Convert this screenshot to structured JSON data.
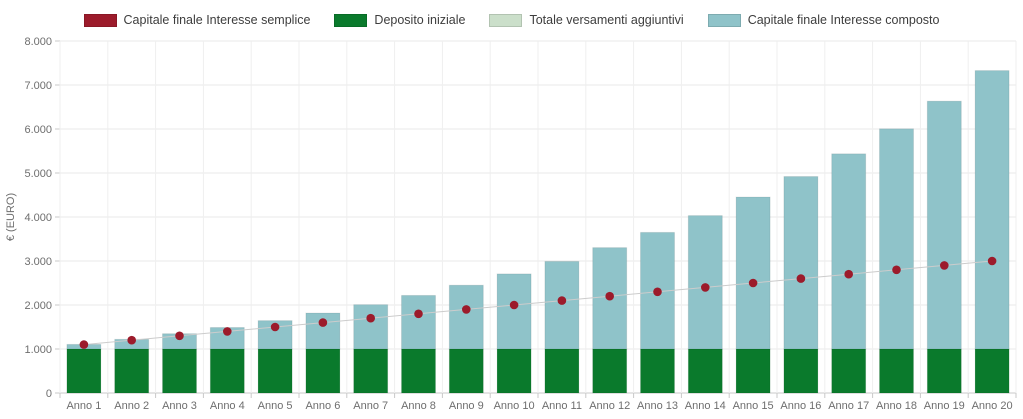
{
  "legend": {
    "items_note": "legend labels mirror chart_data.series names"
  },
  "chart_data": {
    "type": "bar",
    "title": "",
    "xlabel": "",
    "ylabel": "€ (EURO)",
    "ylim": [
      0,
      8000
    ],
    "ytick_step": 1000,
    "y_tick_labels": [
      "0",
      "1.000",
      "2.000",
      "3.000",
      "4.000",
      "5.000",
      "6.000",
      "7.000",
      "8.000"
    ],
    "legend_position": "top-center",
    "grid": true,
    "categories": [
      "Anno 1",
      "Anno 2",
      "Anno 3",
      "Anno 4",
      "Anno 5",
      "Anno 6",
      "Anno 7",
      "Anno 8",
      "Anno 9",
      "Anno 10",
      "Anno 11",
      "Anno 12",
      "Anno 13",
      "Anno 14",
      "Anno 15",
      "Anno 16",
      "Anno 17",
      "Anno 18",
      "Anno 19",
      "Anno 20"
    ],
    "series": [
      {
        "name": "Capitale finale Interesse semplice",
        "render": "point-line",
        "color": "#9C1B2B",
        "line_color": "#cccccc",
        "values": [
          1100,
          1200,
          1300,
          1400,
          1500,
          1600,
          1700,
          1800,
          1900,
          2000,
          2100,
          2200,
          2300,
          2400,
          2500,
          2600,
          2700,
          2800,
          2900,
          3000
        ]
      },
      {
        "name": "Deposito iniziale",
        "render": "bar-stack",
        "color": "#0A7A2C",
        "values": [
          1000,
          1000,
          1000,
          1000,
          1000,
          1000,
          1000,
          1000,
          1000,
          1000,
          1000,
          1000,
          1000,
          1000,
          1000,
          1000,
          1000,
          1000,
          1000,
          1000
        ]
      },
      {
        "name": "Totale versamenti aggiuntivi",
        "render": "bar-stack",
        "color": "#CBDFCA",
        "values": [
          0,
          0,
          0,
          0,
          0,
          0,
          0,
          0,
          0,
          0,
          0,
          0,
          0,
          0,
          0,
          0,
          0,
          0,
          0,
          0
        ]
      },
      {
        "name": "Capitale finale Interesse composto",
        "render": "bar-top-to-total",
        "color": "#8FC3C9",
        "values": [
          1105,
          1220,
          1348,
          1489,
          1645,
          1818,
          2008,
          2218,
          2450,
          2707,
          2990,
          3304,
          3650,
          4032,
          4454,
          4920,
          5436,
          6005,
          6633,
          7328
        ]
      }
    ]
  }
}
